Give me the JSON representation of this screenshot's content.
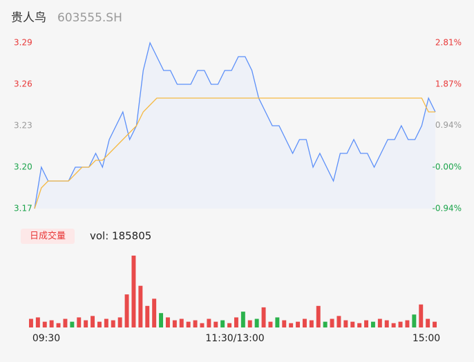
{
  "header": {
    "name": "贵人鸟",
    "code": "603555.SH"
  },
  "chart_data": [
    {
      "type": "line",
      "series": [
        {
          "name": null,
          "color": "#5b8ff9",
          "values": [
            3.17,
            3.2,
            3.19,
            3.19,
            3.19,
            3.19,
            3.2,
            3.2,
            3.2,
            3.21,
            3.2,
            3.22,
            3.23,
            3.24,
            3.22,
            3.23,
            3.27,
            3.29,
            3.28,
            3.27,
            3.27,
            3.26,
            3.26,
            3.26,
            3.27,
            3.27,
            3.26,
            3.26,
            3.27,
            3.27,
            3.28,
            3.28,
            3.27,
            3.25,
            3.24,
            3.23,
            3.23,
            3.22,
            3.21,
            3.22,
            3.22,
            3.2,
            3.21,
            3.2,
            3.19,
            3.21,
            3.21,
            3.22,
            3.21,
            3.21,
            3.2,
            3.21,
            3.22,
            3.22,
            3.23,
            3.22,
            3.22,
            3.23,
            3.25,
            3.24
          ]
        },
        {
          "name": null,
          "color": "#f5b942",
          "values": [
            3.17,
            3.185,
            3.19,
            3.19,
            3.19,
            3.19,
            3.195,
            3.2,
            3.2,
            3.205,
            3.205,
            3.21,
            3.215,
            3.22,
            3.225,
            3.23,
            3.24,
            3.245,
            3.25,
            3.25,
            3.25,
            3.25,
            3.25,
            3.25,
            3.25,
            3.25,
            3.25,
            3.25,
            3.25,
            3.25,
            3.25,
            3.25,
            3.25,
            3.25,
            3.25,
            3.25,
            3.25,
            3.25,
            3.25,
            3.25,
            3.25,
            3.25,
            3.25,
            3.25,
            3.25,
            3.25,
            3.25,
            3.25,
            3.25,
            3.25,
            3.25,
            3.25,
            3.25,
            3.25,
            3.25,
            3.25,
            3.25,
            3.25,
            3.24,
            3.24
          ]
        }
      ],
      "area_color": "#eef1f8",
      "ylim": [
        3.17,
        3.29
      ],
      "yticks": [
        {
          "value": 3.29,
          "label": "3.29"
        },
        {
          "value": 3.26,
          "label": "3.26"
        },
        {
          "value": 3.23,
          "label": "3.23"
        },
        {
          "value": 3.2,
          "label": "3.20"
        },
        {
          "value": 3.17,
          "label": "3.17"
        }
      ],
      "ytick_colors": [
        "#e83838",
        "#e83838",
        "#999999",
        "#1aa34a",
        "#1aa34a"
      ],
      "y2lim": [
        -0.94,
        2.81
      ],
      "y2ticks": [
        {
          "value": 2.81,
          "label": "2.81%"
        },
        {
          "value": 1.87,
          "label": "1.87%"
        },
        {
          "value": 0.94,
          "label": "0.94%"
        },
        {
          "value": 0,
          "label": "-0.00%"
        },
        {
          "value": -0.94,
          "label": "-0.94%"
        }
      ],
      "y2tick_colors": [
        "#e83838",
        "#e83838",
        "#999999",
        "#1aa34a",
        "#1aa34a"
      ]
    },
    {
      "type": "bar",
      "title": "日成交量",
      "summary": "vol: 185805",
      "values": [
        12,
        14,
        8,
        10,
        6,
        12,
        8,
        14,
        10,
        16,
        8,
        12,
        10,
        14,
        46,
        100,
        58,
        30,
        40,
        20,
        14,
        10,
        12,
        8,
        10,
        6,
        12,
        8,
        10,
        6,
        14,
        22,
        10,
        12,
        28,
        8,
        14,
        10,
        6,
        8,
        12,
        10,
        30,
        8,
        12,
        16,
        10,
        8,
        6,
        10,
        8,
        12,
        10,
        6,
        8,
        10,
        18,
        32,
        12,
        8
      ],
      "bar_colors": [
        "#e84a4a",
        "#e84a4a",
        "#e84a4a",
        "#e84a4a",
        "#e84a4a",
        "#e84a4a",
        "#2bb24c",
        "#e84a4a",
        "#e84a4a",
        "#e84a4a",
        "#e84a4a",
        "#e84a4a",
        "#e84a4a",
        "#e84a4a",
        "#e84a4a",
        "#e84a4a",
        "#e84a4a",
        "#e84a4a",
        "#e84a4a",
        "#2bb24c",
        "#e84a4a",
        "#e84a4a",
        "#e84a4a",
        "#e84a4a",
        "#e84a4a",
        "#e84a4a",
        "#e84a4a",
        "#e84a4a",
        "#2bb24c",
        "#e84a4a",
        "#e84a4a",
        "#2bb24c",
        "#e84a4a",
        "#2bb24c",
        "#e84a4a",
        "#e84a4a",
        "#2bb24c",
        "#e84a4a",
        "#e84a4a",
        "#e84a4a",
        "#e84a4a",
        "#e84a4a",
        "#e84a4a",
        "#2bb24c",
        "#e84a4a",
        "#e84a4a",
        "#e84a4a",
        "#e84a4a",
        "#e84a4a",
        "#e84a4a",
        "#2bb24c",
        "#e84a4a",
        "#e84a4a",
        "#e84a4a",
        "#e84a4a",
        "#e84a4a",
        "#2bb24c",
        "#e84a4a",
        "#e84a4a",
        "#e84a4a"
      ],
      "ylim": [
        0,
        100
      ],
      "time_labels": [
        "09:30",
        "11:30/13:00",
        "15:00"
      ]
    }
  ]
}
